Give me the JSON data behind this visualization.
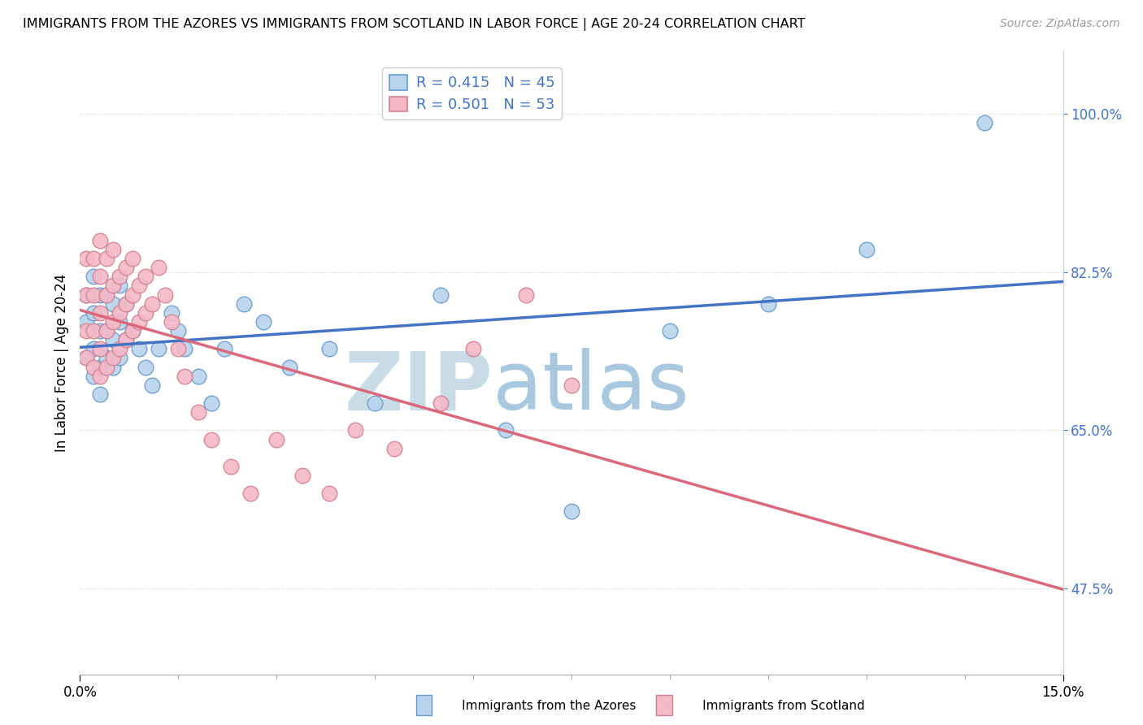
{
  "title": "IMMIGRANTS FROM THE AZORES VS IMMIGRANTS FROM SCOTLAND IN LABOR FORCE | AGE 20-24 CORRELATION CHART",
  "source": "Source: ZipAtlas.com",
  "ylabel": "In Labor Force | Age 20-24",
  "ytick_labels": [
    "47.5%",
    "65.0%",
    "82.5%",
    "100.0%"
  ],
  "ytick_values": [
    0.475,
    0.65,
    0.825,
    1.0
  ],
  "xlim": [
    0.0,
    0.15
  ],
  "ylim": [
    0.38,
    1.07
  ],
  "legend_r_azores": "R = 0.415",
  "legend_n_azores": "N = 45",
  "legend_r_scotland": "R = 0.501",
  "legend_n_scotland": "N = 53",
  "color_azores_fill": "#b8d4ed",
  "color_azores_edge": "#6699cc",
  "color_scotland_fill": "#f5b8c8",
  "color_scotland_edge": "#d08090",
  "color_azores_line": "#4472c4",
  "color_scotland_line": "#d9687a",
  "watermark_zip": "ZIP",
  "watermark_atlas": "atlas",
  "watermark_zip_color": "#c8dce8",
  "watermark_atlas_color": "#a8c8e0",
  "azores_x": [
    0.001,
    0.001,
    0.001,
    0.002,
    0.002,
    0.002,
    0.002,
    0.003,
    0.003,
    0.003,
    0.003,
    0.004,
    0.004,
    0.004,
    0.005,
    0.005,
    0.005,
    0.006,
    0.006,
    0.006,
    0.007,
    0.007,
    0.008,
    0.009,
    0.01,
    0.011,
    0.012,
    0.014,
    0.015,
    0.016,
    0.018,
    0.02,
    0.022,
    0.025,
    0.028,
    0.032,
    0.038,
    0.045,
    0.055,
    0.065,
    0.075,
    0.09,
    0.105,
    0.12,
    0.138
  ],
  "azores_y": [
    0.73,
    0.77,
    0.8,
    0.71,
    0.74,
    0.78,
    0.82,
    0.72,
    0.76,
    0.8,
    0.69,
    0.73,
    0.76,
    0.8,
    0.72,
    0.75,
    0.79,
    0.73,
    0.77,
    0.81,
    0.75,
    0.79,
    0.76,
    0.74,
    0.72,
    0.7,
    0.74,
    0.78,
    0.76,
    0.74,
    0.71,
    0.68,
    0.74,
    0.79,
    0.77,
    0.72,
    0.74,
    0.68,
    0.8,
    0.65,
    0.56,
    0.76,
    0.79,
    0.85,
    0.99
  ],
  "scotland_x": [
    0.001,
    0.001,
    0.001,
    0.001,
    0.002,
    0.002,
    0.002,
    0.002,
    0.003,
    0.003,
    0.003,
    0.003,
    0.003,
    0.004,
    0.004,
    0.004,
    0.004,
    0.005,
    0.005,
    0.005,
    0.005,
    0.006,
    0.006,
    0.006,
    0.007,
    0.007,
    0.007,
    0.008,
    0.008,
    0.008,
    0.009,
    0.009,
    0.01,
    0.01,
    0.011,
    0.012,
    0.013,
    0.014,
    0.015,
    0.016,
    0.018,
    0.02,
    0.023,
    0.026,
    0.03,
    0.034,
    0.038,
    0.042,
    0.048,
    0.055,
    0.06,
    0.068,
    0.075
  ],
  "scotland_y": [
    0.73,
    0.76,
    0.8,
    0.84,
    0.72,
    0.76,
    0.8,
    0.84,
    0.71,
    0.74,
    0.78,
    0.82,
    0.86,
    0.72,
    0.76,
    0.8,
    0.84,
    0.73,
    0.77,
    0.81,
    0.85,
    0.74,
    0.78,
    0.82,
    0.75,
    0.79,
    0.83,
    0.76,
    0.8,
    0.84,
    0.77,
    0.81,
    0.78,
    0.82,
    0.79,
    0.83,
    0.8,
    0.77,
    0.74,
    0.71,
    0.67,
    0.64,
    0.61,
    0.58,
    0.64,
    0.6,
    0.58,
    0.65,
    0.63,
    0.68,
    0.74,
    0.8,
    0.7
  ],
  "xtick_major": [
    0.0,
    0.15
  ],
  "xtick_minor": [
    0.015,
    0.03,
    0.045,
    0.06,
    0.075,
    0.09,
    0.105,
    0.12,
    0.135
  ]
}
